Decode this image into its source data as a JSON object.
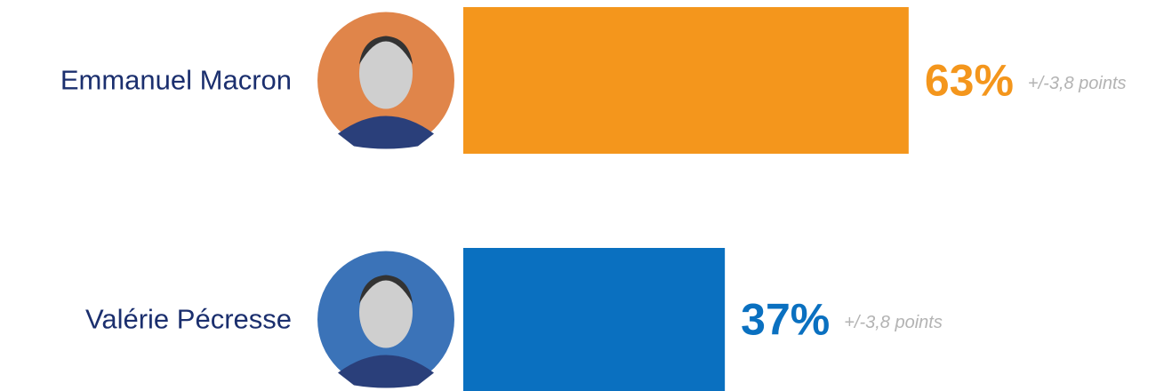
{
  "chart_data": {
    "type": "bar",
    "orientation": "horizontal",
    "categories": [
      "Emmanuel Macron",
      "Valérie Pécresse"
    ],
    "values": [
      63,
      37
    ],
    "value_labels": [
      "63%",
      "37%"
    ],
    "colors": [
      "#f4961c",
      "#0a70c0"
    ],
    "annotations": [
      "+/-3,8 points",
      "+/-3,8 points"
    ],
    "xlim": [
      0,
      100
    ]
  }
}
